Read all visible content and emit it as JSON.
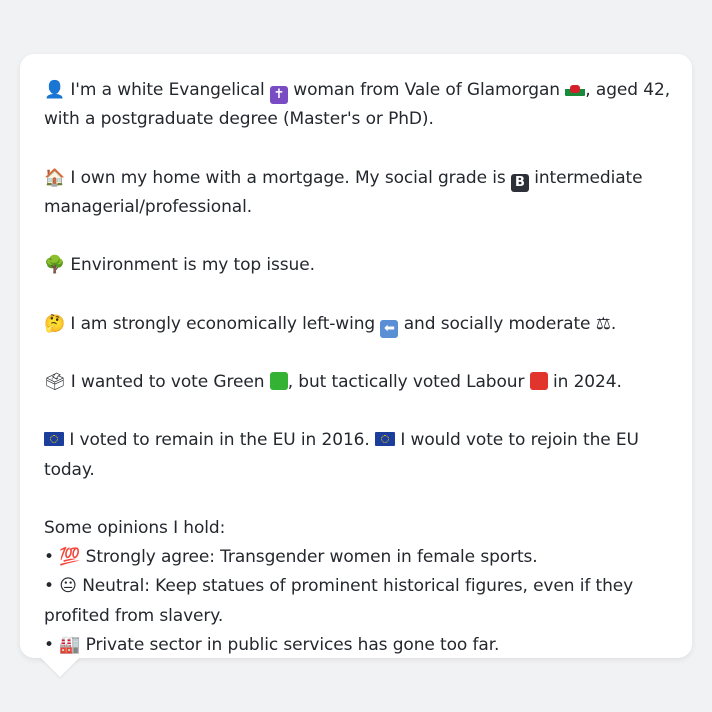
{
  "persona": {
    "intro_line": {
      "icon": "person-silhouette-icon",
      "before_religion": "I'm a white Evangelical",
      "religion_icon": "latin-cross-icon",
      "middle": "woman from Vale of Glamorgan",
      "region_icon": "wales-flag-icon",
      "after": ", aged 42, with a postgraduate degree (Master's or PhD)."
    },
    "home_line": {
      "icon": "house-icon",
      "before_grade": "I own my home with a mortgage. My social grade is",
      "grade_icon": "letter-b-icon",
      "grade_letter": "B",
      "after": "intermediate managerial/professional."
    },
    "issue_line": {
      "icon": "tree-icon",
      "text": "Environment is my top issue."
    },
    "ideology_line": {
      "icon": "thinking-face-icon",
      "before": "I am strongly economically left-wing",
      "left_icon": "left-arrow-icon",
      "middle": "and socially moderate",
      "scale_icon": "balance-scale-icon",
      "after": "."
    },
    "vote_line": {
      "icon": "ballot-box-icon",
      "before": "I wanted to vote Green",
      "green_icon": "green-square-icon",
      "middle": ", but tactically voted Labour",
      "red_icon": "red-square-icon",
      "after": "in 2024."
    },
    "eu_line": {
      "icon": "eu-flag-icon",
      "first": "I voted to remain in the EU in 2016.",
      "second_icon": "eu-flag-icon",
      "second": "I would vote to rejoin the EU today."
    },
    "opinions": {
      "heading": "Some opinions I hold:",
      "items": [
        {
          "bullet": "•",
          "icon": "hundred-points-icon",
          "glyph": "💯",
          "text": "Strongly agree: Transgender women in female sports."
        },
        {
          "bullet": "•",
          "icon": "neutral-face-icon",
          "glyph": "😐",
          "text": "Neutral: Keep statues of prominent historical figures, even if they profited from slavery."
        },
        {
          "bullet": "•",
          "icon": "factory-icon",
          "glyph": "🏭",
          "text": "Private sector in public services has gone too far."
        }
      ]
    }
  },
  "colors": {
    "background": "#f1f2f4",
    "bubble": "#ffffff",
    "text": "#24282e"
  }
}
